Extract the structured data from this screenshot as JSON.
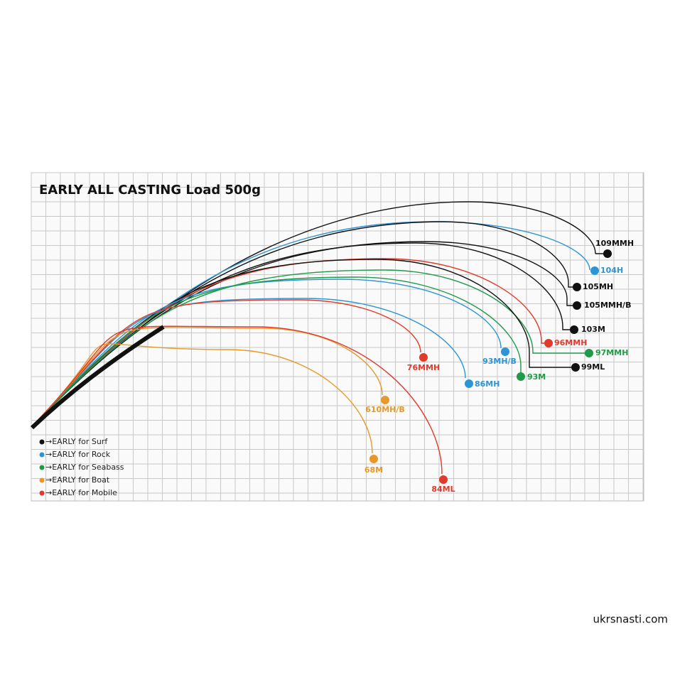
{
  "title": "EARLY ALL CASTING   Load 500g",
  "curves": [
    {
      "label": "109MMH"
    },
    {
      "label": "104H"
    },
    {
      "label": "105MH"
    },
    {
      "label": "105MMH/B"
    },
    {
      "label": "103M"
    },
    {
      "label": "96MMH"
    },
    {
      "label": "97MMH"
    },
    {
      "label": "99ML"
    },
    {
      "label": "93MH/B"
    },
    {
      "label": "93M"
    },
    {
      "label": "86MH"
    },
    {
      "label": "76MMH"
    },
    {
      "label": "610MH/B"
    },
    {
      "label": "68M"
    },
    {
      "label": "84ML"
    }
  ],
  "legend": [
    "→EARLY for Surf",
    "→EARLY for Rock",
    "→EARLY for Seabass",
    "→EARLY for Boat",
    "→EARLY for Mobile"
  ],
  "watermark": "ukrsnasti.com"
}
